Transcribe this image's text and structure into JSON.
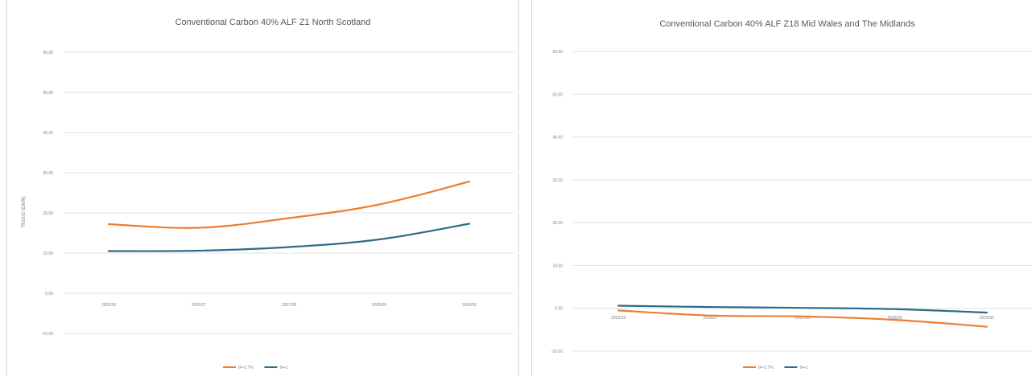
{
  "chart_data": [
    {
      "type": "line",
      "title": "Conventional Carbon 40% ALF Z1 North Scotland",
      "ylabel": "TNUoS (£/kW)",
      "xlabel": "",
      "categories": [
        "2025/26",
        "2026/27",
        "2027/28",
        "2028/29",
        "2029/30"
      ],
      "ylim": [
        -10,
        60
      ],
      "yticks": [
        -10,
        0,
        10,
        20,
        30,
        40,
        50,
        60
      ],
      "ytick_labels": [
        "-10.00",
        "0.00",
        "10.00",
        "20.00",
        "30.00",
        "40.00",
        "50.00",
        "60.00"
      ],
      "grid": true,
      "legend_position": "bottom",
      "series": [
        {
          "name": "IF+1.7%",
          "color": "#ed7d31",
          "values": [
            17.2,
            16.3,
            18.7,
            22.1,
            27.8
          ]
        },
        {
          "name": "IF+1",
          "color": "#2e6b8a",
          "values": [
            10.5,
            10.6,
            11.5,
            13.4,
            17.3
          ]
        }
      ]
    },
    {
      "type": "line",
      "title": "Conventional Carbon 40% ALF Z18 Mid Wales and The Midlands",
      "ylabel": "",
      "xlabel": "",
      "categories": [
        "2025/26",
        "2026/27",
        "2027/28",
        "2028/29",
        "2029/30"
      ],
      "ylim": [
        -10,
        60
      ],
      "yticks": [
        -10,
        0,
        10,
        20,
        30,
        40,
        50,
        60
      ],
      "ytick_labels": [
        "-10.00",
        "0.00",
        "10.00",
        "20.00",
        "30.00",
        "40.00",
        "50.00",
        "60.00"
      ],
      "grid": true,
      "legend_position": "bottom",
      "series": [
        {
          "name": "IF+1.7%",
          "color": "#ed7d31",
          "values": [
            -0.5,
            -1.7,
            -1.9,
            -2.7,
            -4.3
          ]
        },
        {
          "name": "IF+1",
          "color": "#2e6b8a",
          "values": [
            0.6,
            0.3,
            0.1,
            -0.2,
            -1.0
          ]
        }
      ]
    }
  ]
}
